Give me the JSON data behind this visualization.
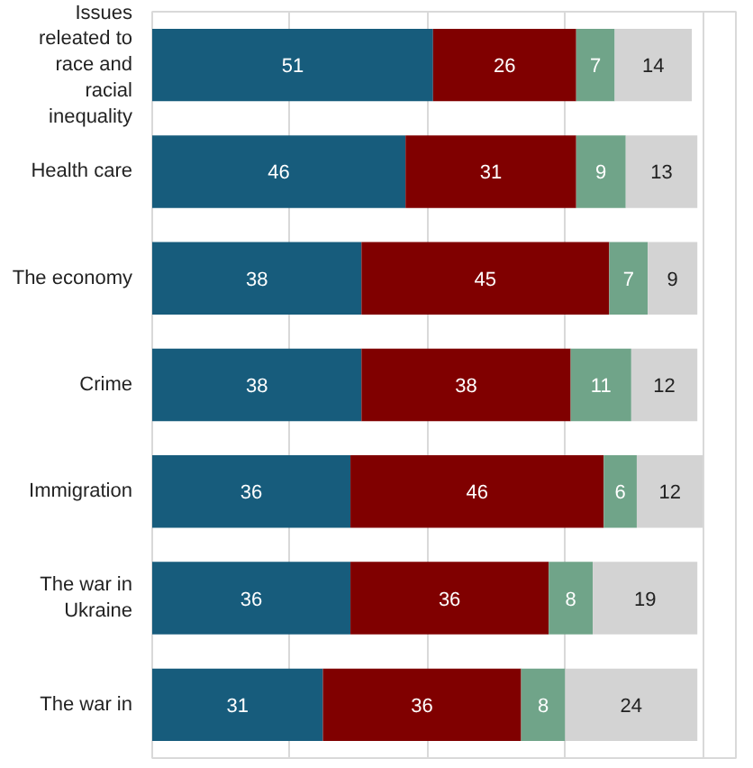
{
  "chart_data": {
    "type": "bar",
    "orientation": "horizontal",
    "stacked": true,
    "data_labels": true,
    "categories": [
      "Issues releated to race and racial inequality",
      "Health care",
      "The economy",
      "Crime",
      "Immigration",
      "The war in Ukraine",
      "The war in"
    ],
    "series": [
      {
        "color": "#175c7c",
        "values": [
          51,
          46,
          38,
          38,
          36,
          36,
          31
        ]
      },
      {
        "color": "#800000",
        "values": [
          26,
          31,
          45,
          38,
          46,
          36,
          36
        ]
      },
      {
        "color": "#70a489",
        "values": [
          7,
          9,
          7,
          11,
          6,
          8,
          8
        ]
      },
      {
        "color": "#d3d3d3",
        "values": [
          14,
          13,
          9,
          12,
          12,
          19,
          24
        ]
      }
    ],
    "xlim": [
      0,
      106
    ],
    "xticks": [
      {
        "value": 0,
        "label": null
      },
      {
        "value": 25,
        "label": null
      },
      {
        "value": 50,
        "label": null
      },
      {
        "value": 75,
        "label": null
      },
      {
        "value": 100,
        "label": null
      }
    ],
    "grid": "x",
    "tick_labels": false
  }
}
